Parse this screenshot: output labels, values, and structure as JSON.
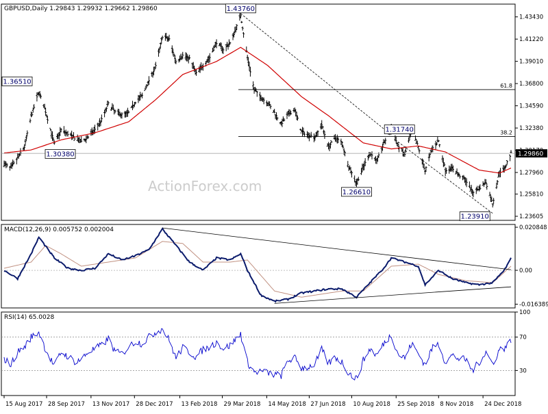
{
  "chart_data": [
    {
      "type": "candlestick",
      "panel": "price",
      "header": {
        "symbol": "GBPUSD,Daily",
        "values": "1.29843 1.29932 1.29662 1.29860"
      },
      "yticks": [
        "1.43430",
        "1.41220",
        "1.39010",
        "1.36800",
        "1.34590",
        "1.32380",
        "1.30170",
        "1.27960",
        "1.25810",
        "1.23605"
      ],
      "ylim": [
        1.232,
        1.447
      ],
      "current_price_label": "1.29860",
      "watermark": "ActionForex.com",
      "fib_levels": [
        {
          "label": "61.8",
          "value": 1.362
        },
        {
          "label": "38.2",
          "value": 1.3153
        }
      ],
      "annotations": [
        {
          "label": "1.36510",
          "price": 1.3651,
          "date": "2017-09-20"
        },
        {
          "label": "1.30380",
          "price": 1.3038,
          "date": "2017-10-06"
        },
        {
          "label": "1.43760",
          "price": 1.4376,
          "date": "2018-04-17"
        },
        {
          "label": "1.26610",
          "price": 1.2661,
          "date": "2018-08-15"
        },
        {
          "label": "1.31740",
          "price": 1.3174,
          "date": "2018-09-20"
        },
        {
          "label": "1.23910",
          "price": 1.2391,
          "date": "2019-01-03"
        }
      ],
      "price_path": [
        [
          "2017-08-15",
          1.288
        ],
        [
          "2017-08-22",
          1.284
        ],
        [
          "2017-08-29",
          1.294
        ],
        [
          "2017-09-05",
          1.305
        ],
        [
          "2017-09-12",
          1.335
        ],
        [
          "2017-09-20",
          1.36
        ],
        [
          "2017-09-27",
          1.34
        ],
        [
          "2017-10-06",
          1.308
        ],
        [
          "2017-10-13",
          1.322
        ],
        [
          "2017-10-20",
          1.318
        ],
        [
          "2017-10-27",
          1.314
        ],
        [
          "2017-11-03",
          1.31
        ],
        [
          "2017-11-10",
          1.315
        ],
        [
          "2017-11-17",
          1.322
        ],
        [
          "2017-11-24",
          1.332
        ],
        [
          "2017-12-01",
          1.348
        ],
        [
          "2017-12-08",
          1.34
        ],
        [
          "2017-12-15",
          1.337
        ],
        [
          "2017-12-22",
          1.339
        ],
        [
          "2017-12-29",
          1.35
        ],
        [
          "2018-01-05",
          1.356
        ],
        [
          "2018-01-12",
          1.371
        ],
        [
          "2018-01-19",
          1.385
        ],
        [
          "2018-01-26",
          1.415
        ],
        [
          "2018-02-02",
          1.412
        ],
        [
          "2018-02-09",
          1.39
        ],
        [
          "2018-02-16",
          1.396
        ],
        [
          "2018-02-23",
          1.393
        ],
        [
          "2018-03-02",
          1.378
        ],
        [
          "2018-03-09",
          1.386
        ],
        [
          "2018-03-16",
          1.394
        ],
        [
          "2018-03-23",
          1.409
        ],
        [
          "2018-03-30",
          1.402
        ],
        [
          "2018-04-06",
          1.408
        ],
        [
          "2018-04-13",
          1.425
        ],
        [
          "2018-04-17",
          1.436
        ],
        [
          "2018-04-24",
          1.394
        ],
        [
          "2018-05-01",
          1.362
        ],
        [
          "2018-05-08",
          1.354
        ],
        [
          "2018-05-15",
          1.349
        ],
        [
          "2018-05-22",
          1.339
        ],
        [
          "2018-05-29",
          1.328
        ],
        [
          "2018-06-05",
          1.337
        ],
        [
          "2018-06-12",
          1.342
        ],
        [
          "2018-06-19",
          1.32
        ],
        [
          "2018-06-26",
          1.317
        ],
        [
          "2018-07-03",
          1.315
        ],
        [
          "2018-07-10",
          1.327
        ],
        [
          "2018-07-17",
          1.305
        ],
        [
          "2018-07-24",
          1.314
        ],
        [
          "2018-07-31",
          1.309
        ],
        [
          "2018-08-07",
          1.285
        ],
        [
          "2018-08-15",
          1.269
        ],
        [
          "2018-08-22",
          1.285
        ],
        [
          "2018-08-29",
          1.299
        ],
        [
          "2018-09-05",
          1.291
        ],
        [
          "2018-09-12",
          1.308
        ],
        [
          "2018-09-20",
          1.324
        ],
        [
          "2018-09-27",
          1.306
        ],
        [
          "2018-10-04",
          1.297
        ],
        [
          "2018-10-11",
          1.321
        ],
        [
          "2018-10-18",
          1.305
        ],
        [
          "2018-10-25",
          1.281
        ],
        [
          "2018-11-01",
          1.303
        ],
        [
          "2018-11-08",
          1.311
        ],
        [
          "2018-11-15",
          1.282
        ],
        [
          "2018-11-22",
          1.284
        ],
        [
          "2018-11-29",
          1.277
        ],
        [
          "2018-12-06",
          1.272
        ],
        [
          "2018-12-13",
          1.26
        ],
        [
          "2018-12-20",
          1.264
        ],
        [
          "2018-12-27",
          1.27
        ],
        [
          "2019-01-03",
          1.248
        ],
        [
          "2019-01-10",
          1.28
        ],
        [
          "2019-01-15",
          1.283
        ],
        [
          "2019-01-22",
          1.2986
        ]
      ],
      "ma_path": [
        [
          "2017-08-15",
          1.299
        ],
        [
          "2017-09-12",
          1.302
        ],
        [
          "2017-10-13",
          1.312
        ],
        [
          "2017-11-17",
          1.319
        ],
        [
          "2017-12-22",
          1.33
        ],
        [
          "2018-01-19",
          1.352
        ],
        [
          "2018-02-16",
          1.377
        ],
        [
          "2018-03-23",
          1.39
        ],
        [
          "2018-04-17",
          1.404
        ],
        [
          "2018-05-15",
          1.386
        ],
        [
          "2018-06-19",
          1.355
        ],
        [
          "2018-07-17",
          1.336
        ],
        [
          "2018-08-22",
          1.309
        ],
        [
          "2018-09-20",
          1.303
        ],
        [
          "2018-10-18",
          1.306
        ],
        [
          "2018-11-15",
          1.3
        ],
        [
          "2018-12-20",
          1.282
        ],
        [
          "2019-01-10",
          1.279
        ],
        [
          "2019-01-22",
          1.284
        ]
      ],
      "trendlines": [
        {
          "from": [
            "2018-04-17",
            1.4376
          ],
          "to": [
            "2018-09-20",
            1.317
          ],
          "style": "dashed"
        },
        {
          "from": [
            "2018-09-27",
            1.31
          ],
          "to": [
            "2019-01-03",
            1.239
          ],
          "style": "dashed"
        }
      ],
      "colors": {
        "price": "#000000",
        "ma": "#d00000",
        "frame": "#000000"
      }
    },
    {
      "type": "line",
      "panel": "macd",
      "header": "MACD(12,26,9) 0.005752 0.002004",
      "yticks": [
        "0.020848",
        "0.00",
        "-0.016389"
      ],
      "ylim": [
        -0.0182,
        0.0222
      ],
      "current_label": "0.00",
      "macd_path": [
        [
          "2017-08-15",
          0.0
        ],
        [
          "2017-08-29",
          -0.004
        ],
        [
          "2017-09-12",
          0.008
        ],
        [
          "2017-09-20",
          0.016
        ],
        [
          "2017-10-06",
          0.006
        ],
        [
          "2017-10-20",
          0.001
        ],
        [
          "2017-11-03",
          0.0
        ],
        [
          "2017-11-17",
          0.001
        ],
        [
          "2017-12-01",
          0.008
        ],
        [
          "2017-12-15",
          0.005
        ],
        [
          "2017-12-29",
          0.007
        ],
        [
          "2018-01-12",
          0.01
        ],
        [
          "2018-01-26",
          0.02
        ],
        [
          "2018-02-09",
          0.012
        ],
        [
          "2018-02-23",
          0.004
        ],
        [
          "2018-03-09",
          0.0
        ],
        [
          "2018-03-23",
          0.006
        ],
        [
          "2018-04-06",
          0.005
        ],
        [
          "2018-04-17",
          0.008
        ],
        [
          "2018-04-24",
          0.0
        ],
        [
          "2018-05-08",
          -0.012
        ],
        [
          "2018-05-22",
          -0.015
        ],
        [
          "2018-06-05",
          -0.014
        ],
        [
          "2018-06-19",
          -0.011
        ],
        [
          "2018-07-03",
          -0.01
        ],
        [
          "2018-07-17",
          -0.009
        ],
        [
          "2018-07-31",
          -0.009
        ],
        [
          "2018-08-15",
          -0.013
        ],
        [
          "2018-08-29",
          -0.006
        ],
        [
          "2018-09-12",
          0.001
        ],
        [
          "2018-09-20",
          0.006
        ],
        [
          "2018-10-04",
          0.004
        ],
        [
          "2018-10-18",
          0.002
        ],
        [
          "2018-10-25",
          -0.007
        ],
        [
          "2018-11-08",
          0.0
        ],
        [
          "2018-11-22",
          -0.004
        ],
        [
          "2018-12-06",
          -0.006
        ],
        [
          "2018-12-20",
          -0.007
        ],
        [
          "2019-01-03",
          -0.006
        ],
        [
          "2019-01-15",
          0.0
        ],
        [
          "2019-01-22",
          0.005752
        ]
      ],
      "signal_path": [
        [
          "2017-08-15",
          0.001
        ],
        [
          "2017-09-12",
          0.004
        ],
        [
          "2017-09-27",
          0.012
        ],
        [
          "2017-10-13",
          0.008
        ],
        [
          "2017-11-03",
          0.002
        ],
        [
          "2017-12-01",
          0.004
        ],
        [
          "2017-12-29",
          0.006
        ],
        [
          "2018-01-26",
          0.014
        ],
        [
          "2018-02-16",
          0.013
        ],
        [
          "2018-03-09",
          0.004
        ],
        [
          "2018-04-06",
          0.004
        ],
        [
          "2018-04-24",
          0.005
        ],
        [
          "2018-05-22",
          -0.01
        ],
        [
          "2018-06-19",
          -0.013
        ],
        [
          "2018-07-31",
          -0.01
        ],
        [
          "2018-08-22",
          -0.01
        ],
        [
          "2018-09-20",
          0.002
        ],
        [
          "2018-10-18",
          0.003
        ],
        [
          "2018-11-08",
          -0.002
        ],
        [
          "2018-12-06",
          -0.005
        ],
        [
          "2019-01-03",
          -0.006
        ],
        [
          "2019-01-22",
          0.002004
        ]
      ],
      "trendlines": [
        {
          "from": [
            "2018-01-26",
            0.0205
          ],
          "to": [
            "2019-01-22",
            0.0003
          ]
        },
        {
          "from": [
            "2018-05-22",
            -0.016
          ],
          "to": [
            "2019-01-22",
            -0.008
          ]
        }
      ],
      "colors": {
        "macd": "#0a1a6b",
        "signal": "#c09080"
      }
    },
    {
      "type": "line",
      "panel": "rsi",
      "header": "RSI(14) 65.0028",
      "yticks": [
        "100",
        "70",
        "30"
      ],
      "ylim": [
        0,
        100
      ],
      "levels": [
        70,
        30
      ],
      "rsi_path": [
        [
          "2017-08-15",
          44
        ],
        [
          "2017-08-22",
          37
        ],
        [
          "2017-08-29",
          52
        ],
        [
          "2017-09-05",
          58
        ],
        [
          "2017-09-12",
          70
        ],
        [
          "2017-09-20",
          76
        ],
        [
          "2017-09-27",
          55
        ],
        [
          "2017-10-06",
          35
        ],
        [
          "2017-10-13",
          52
        ],
        [
          "2017-10-20",
          47
        ],
        [
          "2017-10-27",
          41
        ],
        [
          "2017-11-03",
          43
        ],
        [
          "2017-11-10",
          52
        ],
        [
          "2017-11-17",
          56
        ],
        [
          "2017-11-24",
          60
        ],
        [
          "2017-12-01",
          68
        ],
        [
          "2017-12-08",
          52
        ],
        [
          "2017-12-15",
          50
        ],
        [
          "2017-12-22",
          58
        ],
        [
          "2017-12-29",
          65
        ],
        [
          "2018-01-05",
          62
        ],
        [
          "2018-01-12",
          70
        ],
        [
          "2018-01-19",
          76
        ],
        [
          "2018-01-26",
          80
        ],
        [
          "2018-02-02",
          66
        ],
        [
          "2018-02-09",
          45
        ],
        [
          "2018-02-16",
          57
        ],
        [
          "2018-02-23",
          52
        ],
        [
          "2018-03-02",
          46
        ],
        [
          "2018-03-09",
          55
        ],
        [
          "2018-03-16",
          58
        ],
        [
          "2018-03-23",
          64
        ],
        [
          "2018-03-30",
          56
        ],
        [
          "2018-04-06",
          60
        ],
        [
          "2018-04-13",
          69
        ],
        [
          "2018-04-17",
          74
        ],
        [
          "2018-04-24",
          40
        ],
        [
          "2018-05-01",
          28
        ],
        [
          "2018-05-08",
          29
        ],
        [
          "2018-05-15",
          27
        ],
        [
          "2018-05-22",
          25
        ],
        [
          "2018-05-29",
          24
        ],
        [
          "2018-06-05",
          42
        ],
        [
          "2018-06-12",
          45
        ],
        [
          "2018-06-19",
          33
        ],
        [
          "2018-06-26",
          34
        ],
        [
          "2018-07-03",
          38
        ],
        [
          "2018-07-10",
          55
        ],
        [
          "2018-07-17",
          38
        ],
        [
          "2018-07-24",
          46
        ],
        [
          "2018-07-31",
          40
        ],
        [
          "2018-08-07",
          27
        ],
        [
          "2018-08-15",
          20
        ],
        [
          "2018-08-22",
          42
        ],
        [
          "2018-08-29",
          56
        ],
        [
          "2018-09-05",
          48
        ],
        [
          "2018-09-12",
          62
        ],
        [
          "2018-09-20",
          73
        ],
        [
          "2018-09-27",
          50
        ],
        [
          "2018-10-04",
          45
        ],
        [
          "2018-10-11",
          62
        ],
        [
          "2018-10-18",
          50
        ],
        [
          "2018-10-25",
          37
        ],
        [
          "2018-11-01",
          56
        ],
        [
          "2018-11-08",
          62
        ],
        [
          "2018-11-15",
          40
        ],
        [
          "2018-11-22",
          48
        ],
        [
          "2018-11-29",
          44
        ],
        [
          "2018-12-06",
          43
        ],
        [
          "2018-12-13",
          30
        ],
        [
          "2018-12-20",
          40
        ],
        [
          "2018-12-27",
          52
        ],
        [
          "2019-01-03",
          38
        ],
        [
          "2019-01-10",
          55
        ],
        [
          "2019-01-15",
          57
        ],
        [
          "2019-01-22",
          65
        ]
      ],
      "colors": {
        "rsi": "#0000cc",
        "level": "#888888"
      }
    }
  ],
  "x_axis": {
    "start": "2017-08-15",
    "end": "2019-01-22",
    "ticks": [
      {
        "label": "15 Aug 2017",
        "date": "2017-08-15"
      },
      {
        "label": "28 Sep 2017",
        "date": "2017-09-28"
      },
      {
        "label": "13 Nov 2017",
        "date": "2017-11-13"
      },
      {
        "label": "28 Dec 2017",
        "date": "2017-12-28"
      },
      {
        "label": "13 Feb 2018",
        "date": "2018-02-13"
      },
      {
        "label": "29 Mar 2018",
        "date": "2018-03-29"
      },
      {
        "label": "14 May 2018",
        "date": "2018-05-14"
      },
      {
        "label": "27 Jun 2018",
        "date": "2018-06-27"
      },
      {
        "label": "10 Aug 2018",
        "date": "2018-08-10"
      },
      {
        "label": "25 Sep 2018",
        "date": "2018-09-25"
      },
      {
        "label": "8 Nov 2018",
        "date": "2018-11-08"
      },
      {
        "label": "24 Dec 2018",
        "date": "2018-12-24"
      }
    ]
  }
}
